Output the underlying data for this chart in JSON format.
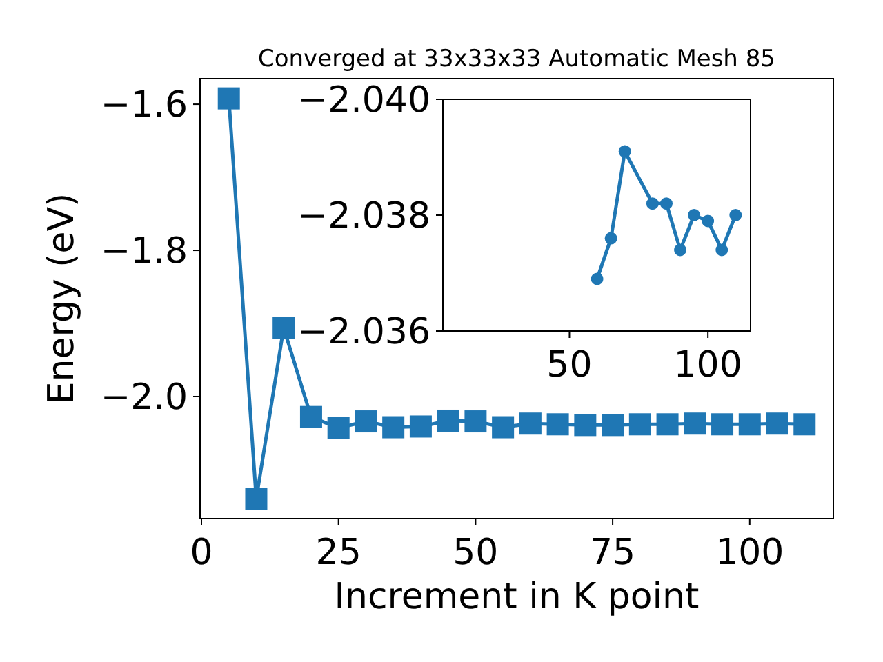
{
  "chart_data": [
    {
      "type": "line",
      "title": "Converged at 33x33x33 Automatic Mesh 85",
      "xlabel": "Increment in K point",
      "ylabel": "Energy (eV)",
      "marker": "square",
      "line_style": "solid",
      "x": [
        5,
        10,
        15,
        20,
        25,
        30,
        35,
        40,
        45,
        50,
        55,
        60,
        65,
        70,
        75,
        80,
        85,
        90,
        95,
        100,
        105,
        110
      ],
      "series": [
        {
          "color": "#1f77b4",
          "values": [
            -1.592,
            -2.14,
            -1.906,
            -2.028,
            -2.043,
            -2.034,
            -2.042,
            -2.041,
            -2.033,
            -2.034,
            -2.042,
            -2.037,
            -2.038,
            -2.039,
            -2.039,
            -2.038,
            -2.038,
            -2.037,
            -2.038,
            -2.038,
            -2.037,
            -2.038
          ]
        }
      ],
      "xlim": [
        -0.25,
        115.25
      ],
      "xticks": [
        0,
        25,
        50,
        75,
        100
      ],
      "ylim": [
        -2.167,
        -1.565
      ],
      "yticks": [
        {
          "value": -1.6,
          "label": "−1.6"
        },
        {
          "value": -1.8,
          "label": "−1.8"
        },
        {
          "value": -2.0,
          "label": "−2.0"
        }
      ]
    },
    {
      "type": "line",
      "marker": "circle",
      "line_style": "solid",
      "x": [
        60,
        65,
        70,
        80,
        85,
        90,
        95,
        100,
        105,
        110
      ],
      "series": [
        {
          "color": "#1f77b4",
          "values": [
            -2.0369,
            -2.0376,
            -2.0391,
            -2.0382,
            -2.0382,
            -2.0374,
            -2.038,
            -2.0379,
            -2.0374,
            -2.038
          ]
        }
      ],
      "xlim": [
        4.3,
        115.4
      ],
      "xticks": [
        50,
        100
      ],
      "ylim": [
        -2.036,
        -2.04
      ],
      "yticks": [
        {
          "value": -2.04,
          "label": "−2.040"
        },
        {
          "value": -2.038,
          "label": "−2.038"
        },
        {
          "value": -2.036,
          "label": "−2.036"
        }
      ]
    }
  ]
}
